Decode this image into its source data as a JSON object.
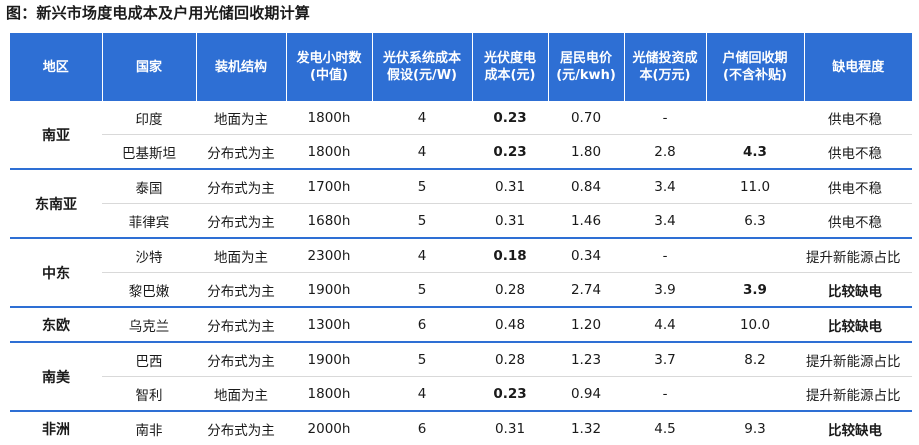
{
  "title": "图：新兴市场度电成本及户用光储回收期计算",
  "headers": [
    "地区",
    "国家",
    "装机结构",
    "发电小时数\n(中值)",
    "光伏系统成本\n假设(元/W)",
    "光伏度电\n成本(元)",
    "居民电价\n(元/kwh)",
    "光储投资成\n本(万元)",
    "户储回收期\n(不含补贴)",
    "缺电程度"
  ],
  "regions": [
    {
      "name": "南亚",
      "rows": [
        {
          "country": "印度",
          "structure": "地面为主",
          "hours": "1800h",
          "sys_cost": "4",
          "lcoe": "0.23",
          "lcoe_bold": true,
          "price": "0.70",
          "invest": "-",
          "payback": "",
          "payback_bold": false,
          "shortage": "供电不稳",
          "shortage_bold": false
        },
        {
          "country": "巴基斯坦",
          "structure": "分布式为主",
          "hours": "1800h",
          "sys_cost": "4",
          "lcoe": "0.23",
          "lcoe_bold": true,
          "price": "1.80",
          "invest": "2.8",
          "payback": "4.3",
          "payback_bold": true,
          "shortage": "供电不稳",
          "shortage_bold": false
        }
      ]
    },
    {
      "name": "东南亚",
      "rows": [
        {
          "country": "泰国",
          "structure": "分布式为主",
          "hours": "1700h",
          "sys_cost": "5",
          "lcoe": "0.31",
          "lcoe_bold": false,
          "price": "0.84",
          "invest": "3.4",
          "payback": "11.0",
          "payback_bold": false,
          "shortage": "供电不稳",
          "shortage_bold": false
        },
        {
          "country": "菲律宾",
          "structure": "分布式为主",
          "hours": "1680h",
          "sys_cost": "5",
          "lcoe": "0.31",
          "lcoe_bold": false,
          "price": "1.46",
          "invest": "3.4",
          "payback": "6.3",
          "payback_bold": false,
          "shortage": "供电不稳",
          "shortage_bold": false
        }
      ]
    },
    {
      "name": "中东",
      "rows": [
        {
          "country": "沙特",
          "structure": "地面为主",
          "hours": "2300h",
          "sys_cost": "4",
          "lcoe": "0.18",
          "lcoe_bold": true,
          "price": "0.34",
          "invest": "-",
          "payback": "",
          "payback_bold": false,
          "shortage": "提升新能源占比",
          "shortage_bold": false
        },
        {
          "country": "黎巴嫩",
          "structure": "分布式为主",
          "hours": "1900h",
          "sys_cost": "5",
          "lcoe": "0.28",
          "lcoe_bold": false,
          "price": "2.74",
          "invest": "3.9",
          "payback": "3.9",
          "payback_bold": true,
          "shortage": "比较缺电",
          "shortage_bold": true
        }
      ]
    },
    {
      "name": "东欧",
      "rows": [
        {
          "country": "乌克兰",
          "structure": "分布式为主",
          "hours": "1300h",
          "sys_cost": "6",
          "lcoe": "0.48",
          "lcoe_bold": false,
          "price": "1.20",
          "invest": "4.4",
          "payback": "10.0",
          "payback_bold": false,
          "shortage": "比较缺电",
          "shortage_bold": true
        }
      ]
    },
    {
      "name": "南美",
      "rows": [
        {
          "country": "巴西",
          "structure": "分布式为主",
          "hours": "1900h",
          "sys_cost": "5",
          "lcoe": "0.28",
          "lcoe_bold": false,
          "price": "1.23",
          "invest": "3.7",
          "payback": "8.2",
          "payback_bold": false,
          "shortage": "提升新能源占比",
          "shortage_bold": false
        },
        {
          "country": "智利",
          "structure": "地面为主",
          "hours": "1800h",
          "sys_cost": "4",
          "lcoe": "0.23",
          "lcoe_bold": true,
          "price": "0.94",
          "invest": "-",
          "payback": "",
          "payback_bold": false,
          "shortage": "提升新能源占比",
          "shortage_bold": false
        }
      ]
    },
    {
      "name": "非洲",
      "rows": [
        {
          "country": "南非",
          "structure": "分布式为主",
          "hours": "2000h",
          "sys_cost": "6",
          "lcoe": "0.31",
          "lcoe_bold": false,
          "price": "1.32",
          "invest": "4.5",
          "payback": "9.3",
          "payback_bold": false,
          "shortage": "比较缺电",
          "shortage_bold": true
        }
      ]
    }
  ]
}
